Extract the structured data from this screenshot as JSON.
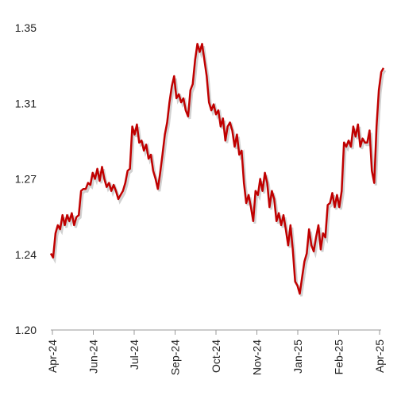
{
  "chart_data": {
    "type": "line",
    "x_labels": [
      "Apr-24",
      "Jun-24",
      "Jul-24",
      "Sep-24",
      "Oct-24",
      "Nov-24",
      "Jan-25",
      "Feb-25",
      "Apr-25"
    ],
    "values": [
      1.238,
      1.236,
      1.248,
      1.252,
      1.25,
      1.257,
      1.252,
      1.257,
      1.254,
      1.258,
      1.252,
      1.256,
      1.257,
      1.269,
      1.27,
      1.27,
      1.273,
      1.272,
      1.278,
      1.275,
      1.28,
      1.274,
      1.281,
      1.275,
      1.271,
      1.273,
      1.269,
      1.272,
      1.269,
      1.265,
      1.267,
      1.269,
      1.273,
      1.279,
      1.28,
      1.301,
      1.297,
      1.302,
      1.293,
      1.294,
      1.289,
      1.292,
      1.285,
      1.287,
      1.279,
      1.275,
      1.27,
      1.278,
      1.287,
      1.297,
      1.303,
      1.313,
      1.321,
      1.326,
      1.315,
      1.317,
      1.313,
      1.315,
      1.309,
      1.306,
      1.319,
      1.322,
      1.334,
      1.342,
      1.338,
      1.342,
      1.334,
      1.326,
      1.313,
      1.309,
      1.312,
      1.307,
      1.309,
      1.301,
      1.305,
      1.294,
      1.301,
      1.303,
      1.299,
      1.291,
      1.297,
      1.287,
      1.289,
      1.273,
      1.263,
      1.267,
      1.261,
      1.254,
      1.269,
      1.267,
      1.275,
      1.269,
      1.278,
      1.273,
      1.261,
      1.269,
      1.265,
      1.254,
      1.258,
      1.252,
      1.257,
      1.25,
      1.242,
      1.252,
      1.24,
      1.224,
      1.222,
      1.218,
      1.226,
      1.234,
      1.238,
      1.25,
      1.242,
      1.239,
      1.246,
      1.252,
      1.24,
      1.248,
      1.246,
      1.262,
      1.263,
      1.268,
      1.261,
      1.267,
      1.261,
      1.269,
      1.293,
      1.291,
      1.294,
      1.291,
      1.301,
      1.296,
      1.302,
      1.291,
      1.295,
      1.293,
      1.293,
      1.299,
      1.279,
      1.273,
      1.301,
      1.319,
      1.328,
      1.33
    ],
    "color": "#c00000",
    "ylim": [
      1.2,
      1.35
    ],
    "yticks": [
      {
        "value": 1.2,
        "label": "1.20"
      },
      {
        "value": 1.2375,
        "label": "1.24"
      },
      {
        "value": 1.275,
        "label": "1.27"
      },
      {
        "value": 1.3125,
        "label": "1.31"
      },
      1.35
    ]
  }
}
